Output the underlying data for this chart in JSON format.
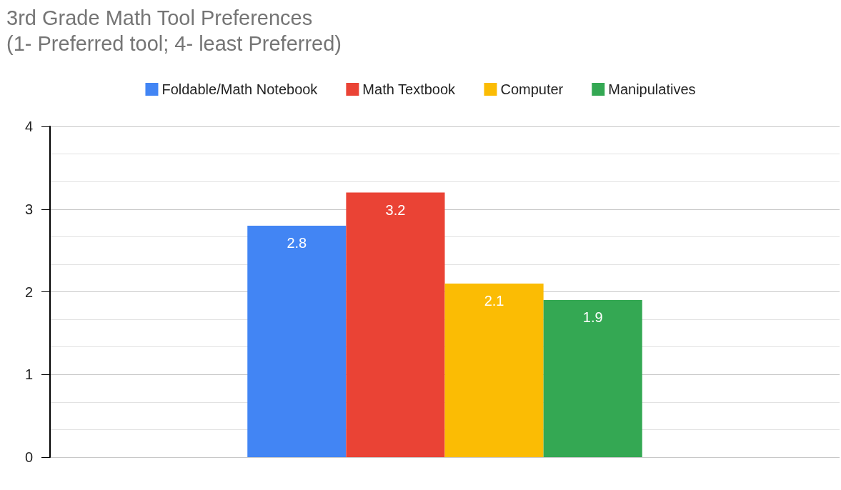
{
  "chart_data": {
    "type": "bar",
    "title": "3rd Grade Math Tool Preferences\n(1- Preferred tool; 4- least Preferred)",
    "categories": [
      null
    ],
    "series": [
      {
        "name": "Foldable/Math Notebook",
        "color": "#4285f4",
        "values": [
          2.8
        ]
      },
      {
        "name": "Math Textbook",
        "color": "#ea4335",
        "values": [
          3.2
        ]
      },
      {
        "name": "Computer",
        "color": "#fbbc04",
        "values": [
          2.1
        ]
      },
      {
        "name": "Manipulatives",
        "color": "#34a853",
        "values": [
          1.9
        ]
      }
    ],
    "ylim": [
      0,
      4
    ],
    "yticks": [
      0,
      1,
      2,
      3,
      4
    ],
    "grid": true,
    "legend": "top",
    "data_labels": true
  }
}
